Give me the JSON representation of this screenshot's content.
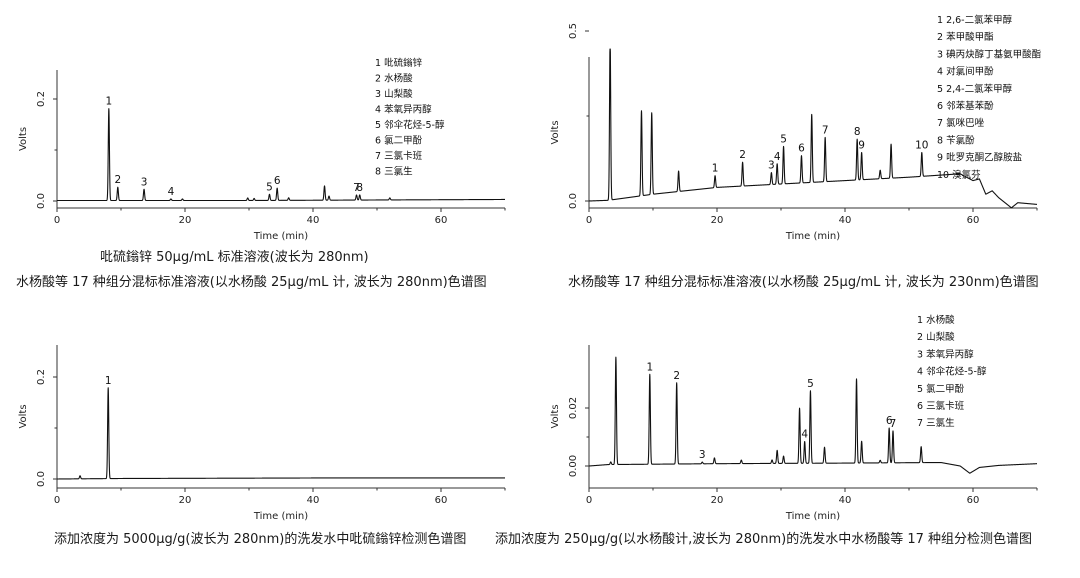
{
  "captions": {
    "c1a": "吡硫鎓锌 50μg/mL 标准溶液(波长为 280nm)",
    "c1b": "水杨酸等 17 种组分混标标准溶液(以水杨酸 25μg/mL 计, 波长为 280nm)色谱图",
    "c2": "水杨酸等 17 种组分混标标准溶液(以水杨酸 25μg/mL 计, 波长为 230nm)色谱图",
    "c3": "添加浓度为 5000μg/g(波长为 280nm)的洗发水中吡硫鎓锌检测色谱图",
    "c4": "添加浓度为 250μg/g(以水杨酸计,波长为 280nm)的洗发水中水杨酸等 17 种组分检测色谱图"
  },
  "chart_data": [
    {
      "type": "line",
      "xlabel": "Time (min)",
      "ylabel": "Volts",
      "xlim": [
        0,
        70
      ],
      "ylim": [
        -0.01,
        0.22
      ],
      "xticks": [
        0,
        20,
        40,
        60
      ],
      "yticks": [
        0.0,
        0.2
      ],
      "ytick_labels": [
        "0.0",
        "0.2"
      ],
      "baseline": [
        [
          0,
          0.001
        ],
        [
          30,
          0.001
        ],
        [
          50,
          0.002
        ],
        [
          70,
          0.003
        ]
      ],
      "peaks": [
        {
          "t": 8.1,
          "h": 0.18,
          "label": "1"
        },
        {
          "t": 9.5,
          "h": 0.026,
          "label": "2"
        },
        {
          "t": 13.6,
          "h": 0.022,
          "label": "3"
        },
        {
          "t": 17.8,
          "h": 0.003,
          "label": "4"
        },
        {
          "t": 19.6,
          "h": 0.003,
          "label": ""
        },
        {
          "t": 29.8,
          "h": 0.005,
          "label": ""
        },
        {
          "t": 30.8,
          "h": 0.004,
          "label": ""
        },
        {
          "t": 33.2,
          "h": 0.012,
          "label": "5"
        },
        {
          "t": 34.4,
          "h": 0.024,
          "label": "6"
        },
        {
          "t": 36.2,
          "h": 0.005,
          "label": ""
        },
        {
          "t": 41.8,
          "h": 0.028,
          "label": ""
        },
        {
          "t": 42.5,
          "h": 0.008,
          "label": ""
        },
        {
          "t": 46.8,
          "h": 0.01,
          "label": "7"
        },
        {
          "t": 47.3,
          "h": 0.01,
          "label": "8"
        },
        {
          "t": 52.0,
          "h": 0.004,
          "label": ""
        }
      ],
      "legend": [
        "1  吡硫鎓锌",
        "2  水杨酸",
        "3  山梨酸",
        "4  苯氧异丙醇",
        "5  邻伞花烃-5-醇",
        "6  氯二甲酚",
        "7  三氯卡班",
        "8  三氯生"
      ]
    },
    {
      "type": "line",
      "xlabel": "Time (min)",
      "ylabel": "Volts",
      "xlim": [
        0,
        70
      ],
      "ylim": [
        -0.04,
        0.5
      ],
      "xticks": [
        0,
        20,
        40,
        60
      ],
      "yticks": [
        0.0,
        0.5
      ],
      "ytick_labels": [
        "0.0",
        "0.5"
      ],
      "baseline": [
        [
          0,
          0.0
        ],
        [
          3,
          0.002
        ],
        [
          10,
          0.02
        ],
        [
          20,
          0.04
        ],
        [
          30,
          0.05
        ],
        [
          40,
          0.06
        ],
        [
          50,
          0.07
        ],
        [
          58,
          0.08
        ],
        [
          60,
          0.06
        ],
        [
          61,
          0.065
        ],
        [
          62,
          0.02
        ],
        [
          63,
          0.03
        ],
        [
          64,
          0.01
        ],
        [
          66,
          -0.02
        ],
        [
          67,
          -0.005
        ],
        [
          70,
          -0.01
        ]
      ],
      "peaks": [
        {
          "t": 3.3,
          "h": 0.48,
          "label": ""
        },
        {
          "t": 8.2,
          "h": 0.25,
          "label": ""
        },
        {
          "t": 9.8,
          "h": 0.24,
          "label": ""
        },
        {
          "t": 14.0,
          "h": 0.06,
          "label": ""
        },
        {
          "t": 19.7,
          "h": 0.035,
          "label": "1"
        },
        {
          "t": 24.0,
          "h": 0.07,
          "label": "2"
        },
        {
          "t": 28.5,
          "h": 0.035,
          "label": "3"
        },
        {
          "t": 29.4,
          "h": 0.06,
          "label": "4"
        },
        {
          "t": 30.4,
          "h": 0.11,
          "label": "5"
        },
        {
          "t": 33.2,
          "h": 0.08,
          "label": "6"
        },
        {
          "t": 34.8,
          "h": 0.2,
          "label": ""
        },
        {
          "t": 36.9,
          "h": 0.13,
          "label": "7"
        },
        {
          "t": 41.9,
          "h": 0.12,
          "label": "8"
        },
        {
          "t": 42.6,
          "h": 0.08,
          "label": "9"
        },
        {
          "t": 45.5,
          "h": 0.025,
          "label": ""
        },
        {
          "t": 47.2,
          "h": 0.1,
          "label": ""
        },
        {
          "t": 52.0,
          "h": 0.07,
          "label": "10"
        }
      ],
      "legend": [
        "1 2,6-二氯苯甲醇",
        "2 苯甲酸甲酯",
        "3 碘丙炔醇丁基氨甲酸酯",
        "4 对氯间甲酚",
        "5 2,4-二氯苯甲醇",
        "6 邻苯基苯酚",
        "7 氯咪巴唑",
        "8 苄氯酚",
        "9 吡罗克酮乙醇胺盐",
        "10 溴氯芬"
      ]
    },
    {
      "type": "line",
      "xlabel": "Time (min)",
      "ylabel": "Volts",
      "xlim": [
        0,
        70
      ],
      "ylim": [
        -0.01,
        0.22
      ],
      "xticks": [
        0,
        20,
        40,
        60
      ],
      "yticks": [
        0.0,
        0.2
      ],
      "ytick_labels": [
        "0.0",
        "0.2"
      ],
      "baseline": [
        [
          0,
          0.0
        ],
        [
          10,
          0.001
        ],
        [
          40,
          0.002
        ],
        [
          70,
          0.002
        ]
      ],
      "peaks": [
        {
          "t": 3.6,
          "h": 0.006,
          "label": ""
        },
        {
          "t": 8.0,
          "h": 0.178,
          "label": "1"
        }
      ],
      "legend": []
    },
    {
      "type": "line",
      "xlabel": "Time (min)",
      "ylabel": "Volts",
      "xlim": [
        0,
        70
      ],
      "ylim": [
        -0.005,
        0.038
      ],
      "xticks": [
        0,
        20,
        40,
        60
      ],
      "yticks": [
        0.0,
        0.02
      ],
      "ytick_labels": [
        "0.00",
        "0.02"
      ],
      "baseline": [
        [
          0,
          0.0
        ],
        [
          3,
          0.0005
        ],
        [
          20,
          0.0008
        ],
        [
          40,
          0.001
        ],
        [
          55,
          0.0012
        ],
        [
          58,
          0.0
        ],
        [
          59.5,
          -0.0025
        ],
        [
          61,
          -0.0005
        ],
        [
          64,
          0.0002
        ],
        [
          70,
          0.0008
        ]
      ],
      "peaks": [
        {
          "t": 3.4,
          "h": 0.0009,
          "label": ""
        },
        {
          "t": 4.2,
          "h": 0.037,
          "label": ""
        },
        {
          "t": 9.5,
          "h": 0.031,
          "label": "1"
        },
        {
          "t": 13.7,
          "h": 0.028,
          "label": "2"
        },
        {
          "t": 17.7,
          "h": 0.0006,
          "label": "3"
        },
        {
          "t": 19.6,
          "h": 0.002,
          "label": ""
        },
        {
          "t": 23.8,
          "h": 0.0012,
          "label": ""
        },
        {
          "t": 28.6,
          "h": 0.0012,
          "label": ""
        },
        {
          "t": 29.4,
          "h": 0.0045,
          "label": ""
        },
        {
          "t": 30.4,
          "h": 0.0025,
          "label": ""
        },
        {
          "t": 32.9,
          "h": 0.019,
          "label": ""
        },
        {
          "t": 33.7,
          "h": 0.0075,
          "label": "4"
        },
        {
          "t": 34.6,
          "h": 0.025,
          "label": "5"
        },
        {
          "t": 36.8,
          "h": 0.0055,
          "label": ""
        },
        {
          "t": 41.8,
          "h": 0.029,
          "label": ""
        },
        {
          "t": 42.6,
          "h": 0.0075,
          "label": ""
        },
        {
          "t": 45.5,
          "h": 0.0009,
          "label": ""
        },
        {
          "t": 46.9,
          "h": 0.012,
          "label": "6"
        },
        {
          "t": 47.5,
          "h": 0.011,
          "label": "7"
        },
        {
          "t": 51.9,
          "h": 0.0055,
          "label": ""
        }
      ],
      "legend": [
        "1  水杨酸",
        "2  山梨酸",
        "3 苯氧异丙醇",
        "4 邻伞花烃-5-醇",
        "5  氯二甲酚",
        "6  三氯卡班",
        "7  三氯生"
      ]
    }
  ]
}
